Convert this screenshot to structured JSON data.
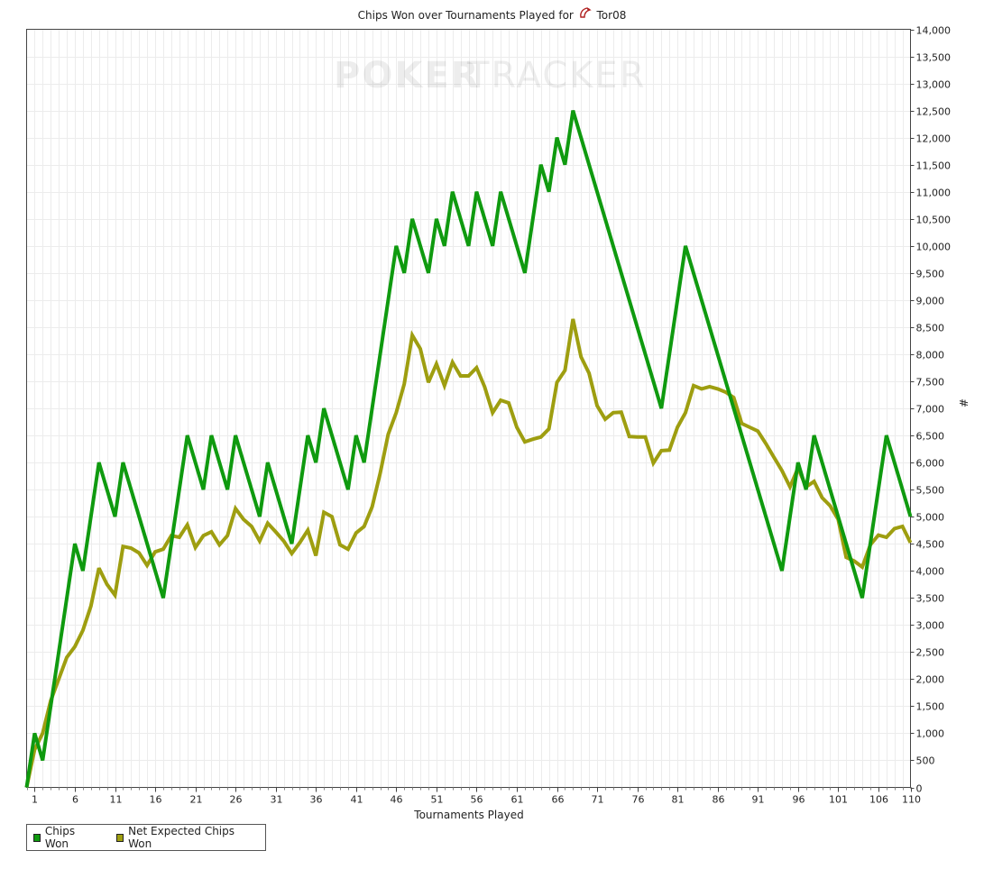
{
  "title": {
    "prefix": "Chips Won over Tournaments Played for",
    "player": "Tor08",
    "icon": "pokertracker-logo-icon"
  },
  "watermark": {
    "text_poker": "POKER",
    "text_tracker": "TRACKER"
  },
  "legend": {
    "items": [
      {
        "label": "Chips Won",
        "color": "#0f9a0f"
      },
      {
        "label": "Net Expected Chips Won",
        "color": "#9e9e10"
      }
    ]
  },
  "colors": {
    "chips_won": "#0f9a0f",
    "net_expected": "#9e9e10",
    "grid": "#ececec",
    "axis": "#444444"
  },
  "chart_data": {
    "type": "line",
    "xlabel": "Tournaments Played",
    "ylabel": "#",
    "xlim": [
      0,
      110
    ],
    "ylim": [
      0,
      14000
    ],
    "x_ticks": [
      1,
      6,
      11,
      16,
      21,
      26,
      31,
      36,
      41,
      46,
      51,
      56,
      61,
      66,
      71,
      76,
      81,
      86,
      91,
      96,
      101,
      106,
      110
    ],
    "y_ticks": [
      "0",
      "500",
      "1,000",
      "1,500",
      "2,000",
      "2,500",
      "3,000",
      "3,500",
      "4,000",
      "4,500",
      "5,000",
      "5,500",
      "6,000",
      "6,500",
      "7,000",
      "7,500",
      "8,000",
      "8,500",
      "9,000",
      "9,500",
      "10,000",
      "10,500",
      "11,000",
      "11,500",
      "12,000",
      "12,500",
      "13,000",
      "13,500",
      "14,000"
    ],
    "grid": true,
    "legend_position": "bottom-left",
    "series": [
      {
        "name": "Chips Won",
        "color": "#0f9a0f",
        "points": [
          [
            0,
            0
          ],
          [
            1,
            1000
          ],
          [
            2,
            500
          ],
          [
            6,
            4500
          ],
          [
            7,
            4000
          ],
          [
            9,
            6000
          ],
          [
            11,
            5000
          ],
          [
            12,
            6000
          ],
          [
            17,
            3500
          ],
          [
            20,
            6500
          ],
          [
            22,
            5500
          ],
          [
            23,
            6500
          ],
          [
            25,
            5500
          ],
          [
            26,
            6500
          ],
          [
            29,
            5000
          ],
          [
            30,
            6000
          ],
          [
            33,
            4500
          ],
          [
            35,
            6500
          ],
          [
            36,
            6000
          ],
          [
            37,
            7000
          ],
          [
            40,
            5500
          ],
          [
            41,
            6500
          ],
          [
            42,
            6000
          ],
          [
            46,
            10000
          ],
          [
            47,
            9500
          ],
          [
            48,
            10500
          ],
          [
            50,
            9500
          ],
          [
            51,
            10500
          ],
          [
            52,
            10000
          ],
          [
            53,
            11000
          ],
          [
            55,
            10000
          ],
          [
            56,
            11000
          ],
          [
            58,
            10000
          ],
          [
            59,
            11000
          ],
          [
            62,
            9500
          ],
          [
            64,
            11500
          ],
          [
            65,
            11000
          ],
          [
            66,
            12000
          ],
          [
            67,
            11500
          ],
          [
            68,
            12500
          ],
          [
            79,
            7000
          ],
          [
            82,
            10000
          ],
          [
            94,
            4000
          ],
          [
            96,
            6000
          ],
          [
            97,
            5500
          ],
          [
            98,
            6500
          ],
          [
            104,
            3500
          ],
          [
            107,
            6500
          ],
          [
            110,
            5000
          ]
        ]
      },
      {
        "name": "Net Expected Chips Won",
        "color": "#9e9e10",
        "points": [
          [
            0,
            0
          ],
          [
            1,
            700
          ],
          [
            2,
            1000
          ],
          [
            3,
            1600
          ],
          [
            4,
            2000
          ],
          [
            5,
            2400
          ],
          [
            6,
            2600
          ],
          [
            7,
            2900
          ],
          [
            8,
            3350
          ],
          [
            9,
            4050
          ],
          [
            10,
            3750
          ],
          [
            11,
            3550
          ],
          [
            12,
            4450
          ],
          [
            13,
            4420
          ],
          [
            14,
            4330
          ],
          [
            15,
            4100
          ],
          [
            16,
            4350
          ],
          [
            17,
            4400
          ],
          [
            18,
            4650
          ],
          [
            19,
            4620
          ],
          [
            20,
            4850
          ],
          [
            21,
            4430
          ],
          [
            22,
            4650
          ],
          [
            23,
            4720
          ],
          [
            24,
            4480
          ],
          [
            25,
            4650
          ],
          [
            26,
            5150
          ],
          [
            27,
            4950
          ],
          [
            28,
            4820
          ],
          [
            29,
            4550
          ],
          [
            30,
            4880
          ],
          [
            31,
            4720
          ],
          [
            32,
            4550
          ],
          [
            33,
            4320
          ],
          [
            34,
            4520
          ],
          [
            35,
            4750
          ],
          [
            36,
            4280
          ],
          [
            37,
            5080
          ],
          [
            38,
            5000
          ],
          [
            39,
            4480
          ],
          [
            40,
            4400
          ],
          [
            41,
            4700
          ],
          [
            42,
            4820
          ],
          [
            43,
            5180
          ],
          [
            44,
            5800
          ],
          [
            45,
            6520
          ],
          [
            46,
            6920
          ],
          [
            47,
            7450
          ],
          [
            48,
            8350
          ],
          [
            49,
            8100
          ],
          [
            50,
            7480
          ],
          [
            51,
            7820
          ],
          [
            52,
            7420
          ],
          [
            53,
            7850
          ],
          [
            54,
            7600
          ],
          [
            55,
            7600
          ],
          [
            56,
            7750
          ],
          [
            57,
            7400
          ],
          [
            58,
            6920
          ],
          [
            59,
            7150
          ],
          [
            60,
            7100
          ],
          [
            61,
            6650
          ],
          [
            62,
            6380
          ],
          [
            63,
            6430
          ],
          [
            64,
            6470
          ],
          [
            65,
            6620
          ],
          [
            66,
            7480
          ],
          [
            67,
            7700
          ],
          [
            68,
            8650
          ],
          [
            69,
            7950
          ],
          [
            70,
            7650
          ],
          [
            71,
            7050
          ],
          [
            72,
            6800
          ],
          [
            73,
            6920
          ],
          [
            74,
            6930
          ],
          [
            75,
            6480
          ],
          [
            76,
            6470
          ],
          [
            77,
            6470
          ],
          [
            78,
            5990
          ],
          [
            79,
            6220
          ],
          [
            80,
            6230
          ],
          [
            81,
            6650
          ],
          [
            82,
            6920
          ],
          [
            83,
            7420
          ],
          [
            84,
            7360
          ],
          [
            85,
            7400
          ],
          [
            86,
            7360
          ],
          [
            87,
            7300
          ],
          [
            88,
            7200
          ],
          [
            89,
            6720
          ],
          [
            90,
            6650
          ],
          [
            91,
            6580
          ],
          [
            92,
            6350
          ],
          [
            93,
            6100
          ],
          [
            94,
            5850
          ],
          [
            95,
            5550
          ],
          [
            96,
            5900
          ],
          [
            97,
            5550
          ],
          [
            98,
            5650
          ],
          [
            99,
            5350
          ],
          [
            100,
            5200
          ],
          [
            101,
            4950
          ],
          [
            102,
            4250
          ],
          [
            103,
            4180
          ],
          [
            104,
            4070
          ],
          [
            105,
            4480
          ],
          [
            106,
            4660
          ],
          [
            107,
            4620
          ],
          [
            108,
            4780
          ],
          [
            109,
            4820
          ],
          [
            110,
            4520
          ]
        ]
      }
    ]
  }
}
